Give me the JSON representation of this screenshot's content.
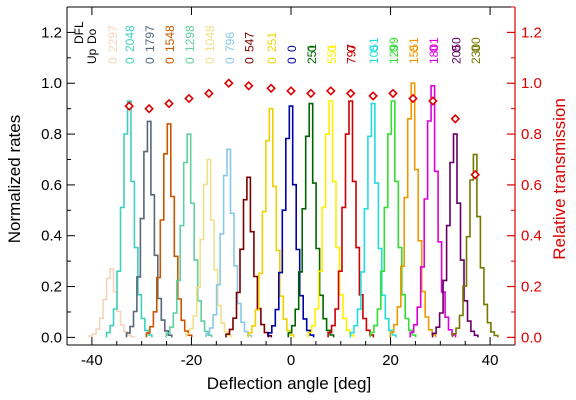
{
  "chart_data": {
    "type": "line",
    "title": "",
    "xlabel": "Deflection angle [deg]",
    "ylabel": "Normalized rates",
    "y2label": "Relative transmission",
    "xlim": [
      -45,
      45
    ],
    "ylim": [
      -0.03,
      1.3
    ],
    "y2lim": [
      -0.03,
      1.3
    ],
    "xticks": [
      -40,
      -20,
      0,
      20,
      40
    ],
    "yticks": [
      0.0,
      0.2,
      0.4,
      0.6,
      0.8,
      1.0,
      1.2
    ],
    "y2ticks": [
      0.0,
      0.2,
      0.4,
      0.6,
      0.8,
      1.0,
      1.2
    ],
    "xtick_labels": [
      "-40",
      "-20",
      "0",
      "20",
      "40"
    ],
    "ytick_labels": [
      "0.0",
      "0.2",
      "0.4",
      "0.6",
      "0.8",
      "1.0",
      "1.2"
    ],
    "y2tick_labels": [
      "0.0",
      "0.2",
      "0.4",
      "0.6",
      "0.8",
      "1.0",
      "1.2"
    ],
    "header_labels": [
      "DFL",
      "Up",
      "Do"
    ],
    "right_axis_color": "#dd0000",
    "series": [
      {
        "up": "0",
        "down": "2297",
        "color": "#f5d5b8",
        "center": -36.0,
        "peak": 0.27
      },
      {
        "up": "0",
        "down": "2048",
        "color": "#40cfbf",
        "center": -32.5,
        "peak": 0.93
      },
      {
        "up": "0",
        "down": "1797",
        "color": "#56687a",
        "center": -28.5,
        "peak": 0.85
      },
      {
        "up": "0",
        "down": "1548",
        "color": "#cc5500",
        "center": -24.5,
        "peak": 0.84
      },
      {
        "up": "0",
        "down": "1298",
        "color": "#60d0a0",
        "center": -20.5,
        "peak": 0.8
      },
      {
        "up": "0",
        "down": "1048",
        "color": "#f0e08a",
        "center": -16.5,
        "peak": 0.7
      },
      {
        "up": "0",
        "down": "796",
        "color": "#88c8e8",
        "center": -12.5,
        "peak": 0.74
      },
      {
        "up": "0",
        "down": "547",
        "color": "#7a0000",
        "center": -8.5,
        "peak": 0.63
      },
      {
        "up": "0",
        "down": "251",
        "color": "#f0d000",
        "center": -4.0,
        "peak": 0.9
      },
      {
        "up": "0",
        "down": "0",
        "color": "#0000aa",
        "center": 0.0,
        "peak": 0.91
      },
      {
        "up": "251",
        "down": "0",
        "color": "#006600",
        "center": 4.0,
        "peak": 0.92
      },
      {
        "up": "551",
        "down": "0",
        "color": "#ffee00",
        "center": 8.0,
        "peak": 0.93
      },
      {
        "up": "797",
        "down": "0",
        "color": "#cc0000",
        "center": 12.0,
        "peak": 0.93
      },
      {
        "up": "1051",
        "down": "0",
        "color": "#22dddd",
        "center": 16.5,
        "peak": 0.92
      },
      {
        "up": "1299",
        "down": "0",
        "color": "#33dd33",
        "center": 20.5,
        "peak": 0.93
      },
      {
        "up": "1551",
        "down": "0",
        "color": "#ee9900",
        "center": 24.5,
        "peak": 1.0
      },
      {
        "up": "1801",
        "down": "0",
        "color": "#dd00dd",
        "center": 28.5,
        "peak": 0.99
      },
      {
        "up": "2050",
        "down": "0",
        "color": "#660066",
        "center": 33.0,
        "peak": 0.8
      },
      {
        "up": "2300",
        "down": "0",
        "color": "#777700",
        "center": 37.0,
        "peak": 0.72
      }
    ],
    "transmission": {
      "color": "#dd0000",
      "x": [
        -32.5,
        -28.5,
        -24.5,
        -20.5,
        -16.5,
        -12.5,
        -8.5,
        -4.0,
        0.0,
        4.0,
        8.0,
        12.0,
        16.5,
        20.5,
        24.5,
        28.5,
        33.0,
        37.0
      ],
      "y": [
        0.91,
        0.9,
        0.92,
        0.94,
        0.96,
        1.0,
        0.99,
        0.98,
        0.97,
        0.96,
        0.97,
        0.96,
        0.95,
        0.96,
        0.94,
        0.93,
        0.86,
        0.64
      ]
    }
  }
}
